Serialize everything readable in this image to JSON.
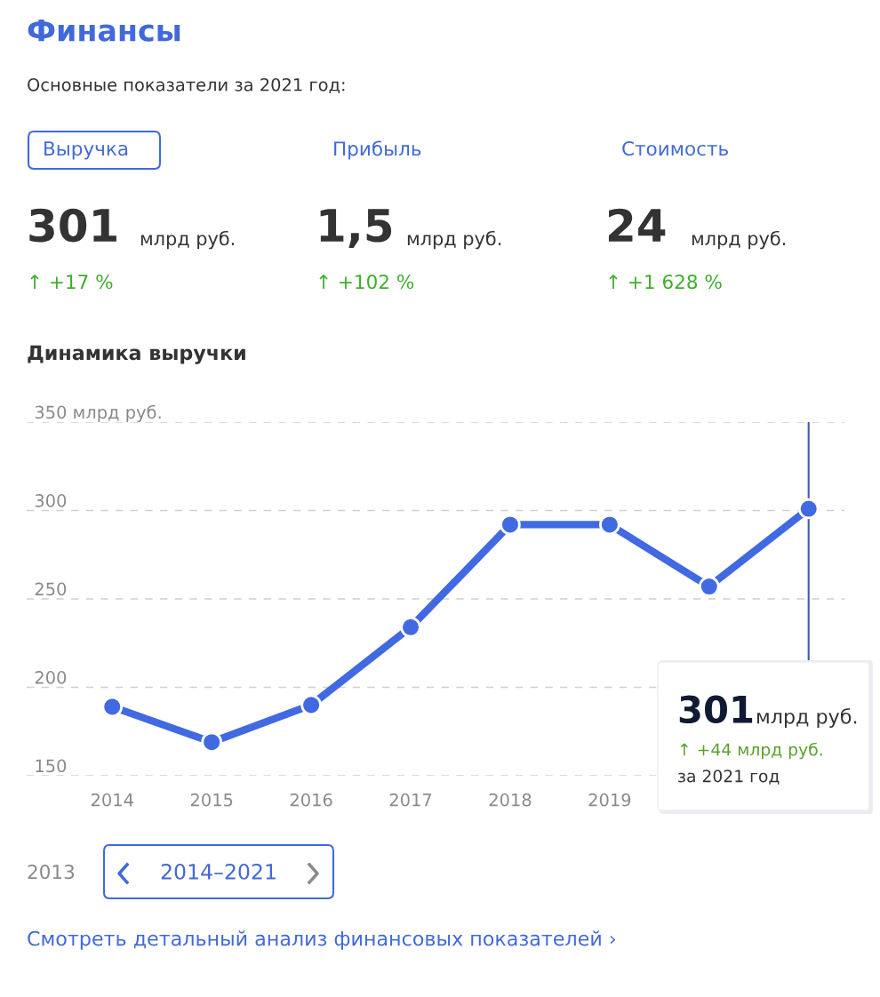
{
  "chart_data": [
    {
      "type": "other",
      "title": "Финансы",
      "subtitle": "Основные показатели за 2021 год:",
      "annotations": [
        "Выручка",
        "Прибыль",
        "Стоимость",
        "301",
        "млрд руб.",
        "1,5",
        "млрд руб.",
        "24",
        "млрд руб.",
        "↑ +17 %",
        "↑ +102 %",
        "↑ +1 628 %"
      ]
    },
    {
      "type": "line",
      "title": "Динамика выручки",
      "x": [
        2014,
        2015,
        2016,
        2017,
        2018,
        2019,
        2020,
        2021
      ],
      "xlim": [
        2013.14,
        2021.36
      ],
      "xticks": [
        2014,
        2015,
        2016,
        2017,
        2018,
        2019
      ],
      "ref_lines": [
        {
          "axis": "x",
          "value": 2021,
          "color": "#3a5bb0"
        }
      ],
      "series": [
        {
          "color": "#4169e1",
          "values": [
            189,
            169,
            190,
            234,
            292,
            292,
            257,
            301
          ]
        }
      ],
      "ylim": [
        150,
        350
      ],
      "yticks": [
        150,
        200,
        250,
        300,
        {
          "value": 350,
          "label": "350 млрд руб."
        }
      ],
      "grid": "y",
      "marker": "circle",
      "line_style": "solid",
      "annotations": [
        "301",
        "млрд руб.",
        "↑ +44 млрд руб.",
        "за 2021 год",
        "2013",
        "2014–2021",
        "Смотреть детальный анализ финансовых показателей ›"
      ]
    }
  ]
}
